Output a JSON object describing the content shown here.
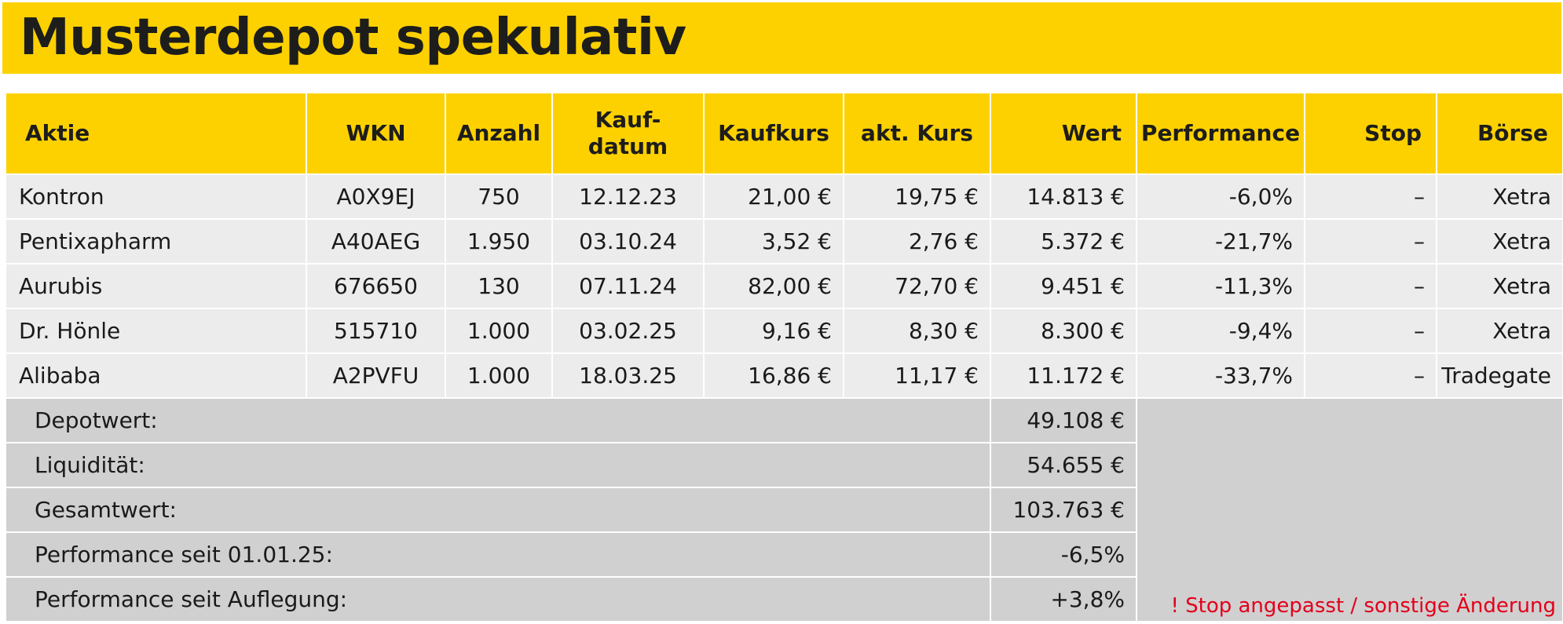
{
  "title": "Musterdepot spekulativ",
  "headers": {
    "aktie": "Aktie",
    "wkn": "WKN",
    "anzahl": "Anzahl",
    "kaufdatum_1": "Kauf-",
    "kaufdatum_2": "datum",
    "kaufkurs": "Kaufkurs",
    "akt_kurs": "akt. Kurs",
    "wert": "Wert",
    "performance": "Performance",
    "stop": "Stop",
    "boerse": "Börse"
  },
  "rows": [
    {
      "aktie": "Kontron",
      "wkn": "A0X9EJ",
      "anzahl": "750",
      "kaufdatum": "12.12.23",
      "kaufkurs": "21,00 €",
      "akt_kurs": "19,75 €",
      "wert": "14.813 €",
      "performance": "-6,0%",
      "stop": "–",
      "boerse": "Xetra"
    },
    {
      "aktie": "Pentixapharm",
      "wkn": "A40AEG",
      "anzahl": "1.950",
      "kaufdatum": "03.10.24",
      "kaufkurs": "3,52 €",
      "akt_kurs": "2,76 €",
      "wert": "5.372 €",
      "performance": "-21,7%",
      "stop": "–",
      "boerse": "Xetra"
    },
    {
      "aktie": "Aurubis",
      "wkn": "676650",
      "anzahl": "130",
      "kaufdatum": "07.11.24",
      "kaufkurs": "82,00 €",
      "akt_kurs": "72,70 €",
      "wert": "9.451 €",
      "performance": "-11,3%",
      "stop": "–",
      "boerse": "Xetra"
    },
    {
      "aktie": "Dr. Hönle",
      "wkn": "515710",
      "anzahl": "1.000",
      "kaufdatum": "03.02.25",
      "kaufkurs": "9,16 €",
      "akt_kurs": "8,30 €",
      "wert": "8.300 €",
      "performance": "-9,4%",
      "stop": "–",
      "boerse": "Xetra"
    },
    {
      "aktie": "Alibaba",
      "wkn": "A2PVFU",
      "anzahl": "1.000",
      "kaufdatum": "18.03.25",
      "kaufkurs": "16,86 €",
      "akt_kurs": "11,17 €",
      "wert": "11.172 €",
      "performance": "-33,7%",
      "stop": "–",
      "boerse": "Tradegate"
    }
  ],
  "summary": [
    {
      "label": "Depotwert:",
      "value": "49.108 €"
    },
    {
      "label": "Liquidität:",
      "value": "54.655 €"
    },
    {
      "label": "Gesamtwert:",
      "value": "103.763 €"
    },
    {
      "label": "Performance seit 01.01.25:",
      "value": "-6,5%"
    },
    {
      "label": "Performance seit Auflegung:",
      "value": "+3,8%"
    }
  ],
  "note": "! Stop angepasst / sonstige Änderung",
  "colors": {
    "header_yellow": "#fdd100",
    "row_grey": "#ececec",
    "summary_grey": "#d0d0d0",
    "note_red": "#e3001b"
  }
}
